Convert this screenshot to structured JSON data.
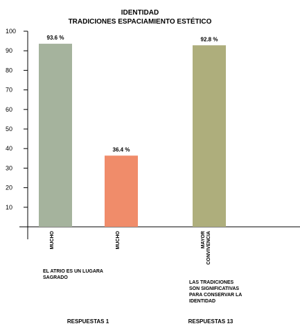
{
  "chart_data": {
    "type": "bar",
    "title": "IDENTIDAD",
    "subtitle": "TRADICIONES ESPACIAMIENTO ESTÉTICO",
    "ylim": [
      0,
      100
    ],
    "y_ticks": [
      "100",
      "90",
      "80",
      "70",
      "60",
      "50",
      "40",
      "30",
      "20",
      "10"
    ],
    "grid": false,
    "categories": [
      "MUCHO",
      "MUCHO",
      "MAYOR CONVIVENCIA"
    ],
    "values": [
      93.6,
      36.4,
      92.8
    ],
    "value_labels": [
      "93.6 %",
      "36.4 %",
      "92.8 %"
    ],
    "colors": [
      "#a5b39d",
      "#f08c6a",
      "#aeae7c"
    ],
    "category_lines": [
      [
        "MUCHO"
      ],
      [
        "MUCHO"
      ],
      [
        "MAYOR",
        "CONVIVENCIA"
      ]
    ],
    "annotations": [
      {
        "lines": [
          "EL ATRIO ES UN LUGARA",
          "SAGRADO"
        ]
      },
      {
        "lines": [
          "LAS TRADICIONES",
          "SON SIGNIFICATIVAS",
          "PARA CONSERVAR LA",
          "IDENTIDAD"
        ]
      }
    ],
    "groups": [
      "RESPUESTAS 1",
      "RESPUESTAS 13"
    ]
  }
}
